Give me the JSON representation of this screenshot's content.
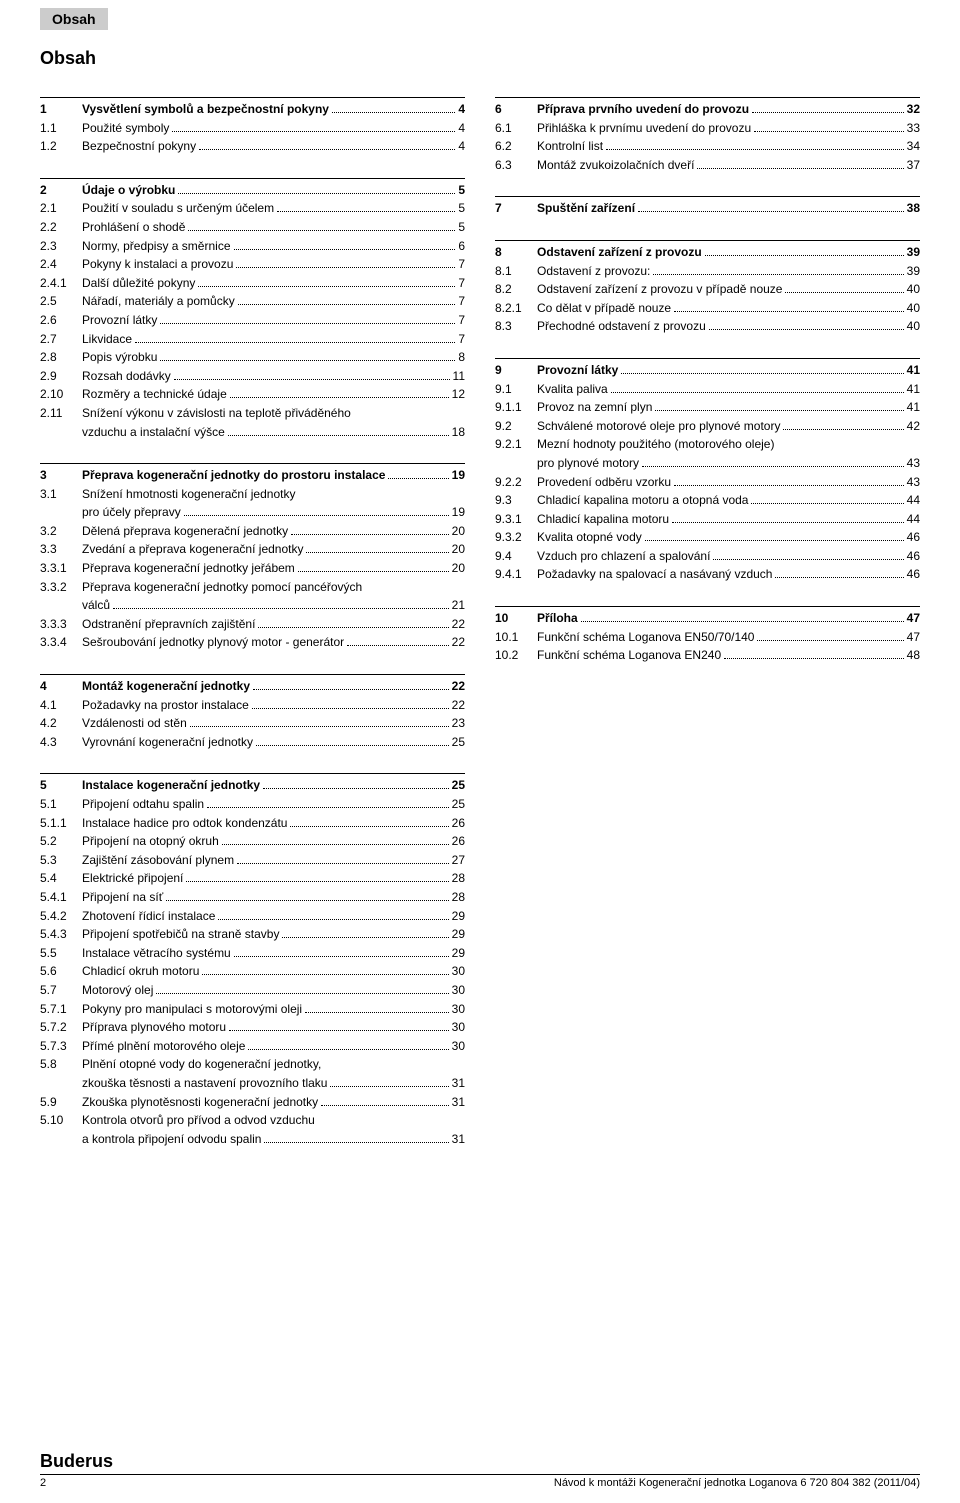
{
  "header_tab": "Obsah",
  "main_title": "Obsah",
  "footer": {
    "brand": "Buderus",
    "page": "2",
    "doc_ref": "Návod k montáži Kogenerační jednotka Loganova  6 720 804 382 (2011/04)"
  },
  "left_column": [
    {
      "type": "section",
      "num": "1",
      "title": "Vysvětlení symbolů a bezpečnostní pokyny",
      "page": "4",
      "items": [
        {
          "num": "1.1",
          "title": "Použité symboly",
          "page": "4"
        },
        {
          "num": "1.2",
          "title": "Bezpečnostní pokyny",
          "page": "4"
        }
      ]
    },
    {
      "type": "section",
      "num": "2",
      "title": "Údaje o výrobku",
      "page": "5",
      "items": [
        {
          "num": "2.1",
          "title": "Použití v souladu s určeným účelem",
          "page": "5"
        },
        {
          "num": "2.2",
          "title": "Prohlášení o shodě",
          "page": "5"
        },
        {
          "num": "2.3",
          "title": "Normy, předpisy a směrnice",
          "page": "6"
        },
        {
          "num": "2.4",
          "title": "Pokyny k instalaci a provozu",
          "page": "7"
        },
        {
          "num": "2.4.1",
          "title": "Další důležité pokyny",
          "page": "7"
        },
        {
          "num": "2.5",
          "title": "Nářadí, materiály a pomůcky",
          "page": "7"
        },
        {
          "num": "2.6",
          "title": "Provozní látky",
          "page": "7"
        },
        {
          "num": "2.7",
          "title": "Likvidace",
          "page": "7"
        },
        {
          "num": "2.8",
          "title": "Popis výrobku",
          "page": "8"
        },
        {
          "num": "2.9",
          "title": "Rozsah dodávky",
          "page": "11"
        },
        {
          "num": "2.10",
          "title": "Rozměry a technické údaje",
          "page": "12"
        },
        {
          "num": "2.11",
          "title_lines": [
            "Snížení výkonu v závislosti na teplotě přiváděného",
            "vzduchu a instalační výšce"
          ],
          "page": "18"
        }
      ]
    },
    {
      "type": "section",
      "num": "3",
      "title": "Přeprava kogenerační jednotky do prostoru instalace",
      "page": "19",
      "items": [
        {
          "num": "3.1",
          "title_lines": [
            "Snížení hmotnosti kogenerační jednotky",
            "pro účely přepravy"
          ],
          "page": "19"
        },
        {
          "num": "3.2",
          "title": "Dělená přeprava kogenerační jednotky",
          "page": "20"
        },
        {
          "num": "3.3",
          "title": "Zvedání a přeprava kogenerační jednotky",
          "page": "20"
        },
        {
          "num": "3.3.1",
          "title": "Přeprava kogenerační jednotky jeřábem",
          "page": "20"
        },
        {
          "num": "3.3.2",
          "title_lines": [
            "Přeprava kogenerační jednotky pomocí pancéřových",
            "válců"
          ],
          "page": "21"
        },
        {
          "num": "3.3.3",
          "title": "Odstranění přepravních zajištění",
          "page": "22"
        },
        {
          "num": "3.3.4",
          "title": "Sešroubování jednotky plynový motor - generátor",
          "page": "22"
        }
      ]
    },
    {
      "type": "section",
      "num": "4",
      "title": "Montáž kogenerační jednotky",
      "page": "22",
      "items": [
        {
          "num": "4.1",
          "title": "Požadavky na prostor instalace",
          "page": "22"
        },
        {
          "num": "4.2",
          "title": "Vzdálenosti od stěn",
          "page": "23"
        },
        {
          "num": "4.3",
          "title": "Vyrovnání kogenerační jednotky",
          "page": "25"
        }
      ]
    },
    {
      "type": "section",
      "num": "5",
      "title": "Instalace kogenerační jednotky",
      "page": "25",
      "items": [
        {
          "num": "5.1",
          "title": "Připojení odtahu spalin",
          "page": "25"
        },
        {
          "num": "5.1.1",
          "title": "Instalace hadice pro odtok kondenzátu",
          "page": "26"
        },
        {
          "num": "5.2",
          "title": "Připojení na otopný okruh",
          "page": "26"
        },
        {
          "num": "5.3",
          "title": "Zajištění zásobování plynem",
          "page": "27"
        },
        {
          "num": "5.4",
          "title": "Elektrické připojení",
          "page": "28"
        },
        {
          "num": "5.4.1",
          "title": "Připojení na síť",
          "page": "28"
        },
        {
          "num": "5.4.2",
          "title": "Zhotovení řídicí instalace",
          "page": "29"
        },
        {
          "num": "5.4.3",
          "title": "Připojení spotřebičů na straně stavby",
          "page": "29"
        },
        {
          "num": "5.5",
          "title": "Instalace větracího systému",
          "page": "29"
        },
        {
          "num": "5.6",
          "title": "Chladicí okruh motoru",
          "page": "30"
        },
        {
          "num": "5.7",
          "title": "Motorový olej",
          "page": "30"
        },
        {
          "num": "5.7.1",
          "title": "Pokyny pro manipulaci s motorovými oleji",
          "page": "30"
        },
        {
          "num": "5.7.2",
          "title": "Příprava plynového motoru",
          "page": "30"
        },
        {
          "num": "5.7.3",
          "title": "Přímé plnění motorového oleje",
          "page": "30"
        },
        {
          "num": "5.8",
          "title_lines": [
            "Plnění otopné vody do kogenerační jednotky,",
            "zkouška těsnosti a nastavení provozního tlaku"
          ],
          "page": "31"
        },
        {
          "num": "5.9",
          "title": "Zkouška plynotěsnosti kogenerační jednotky",
          "page": "31"
        },
        {
          "num": "5.10",
          "title_lines": [
            "Kontrola otvorů pro přívod a odvod vzduchu",
            "a kontrola připojení odvodu spalin"
          ],
          "page": "31"
        }
      ]
    }
  ],
  "right_column": [
    {
      "type": "section",
      "num": "6",
      "title": "Příprava prvního uvedení do provozu",
      "page": "32",
      "items": [
        {
          "num": "6.1",
          "title": "Přihláška k prvnímu uvedení do provozu",
          "page": "33"
        },
        {
          "num": "6.2",
          "title": "Kontrolní list",
          "page": "34"
        },
        {
          "num": "6.3",
          "title": "Montáž zvukoizolačních dveří",
          "page": "37"
        }
      ]
    },
    {
      "type": "section",
      "num": "7",
      "title": "Spuštění zařízení",
      "page": "38",
      "items": []
    },
    {
      "type": "section",
      "num": "8",
      "title": "Odstavení zařízení z provozu",
      "page": "39",
      "items": [
        {
          "num": "8.1",
          "title": "Odstavení z provozu:",
          "page": "39"
        },
        {
          "num": "8.2",
          "title": "Odstavení zařízení z provozu v případě nouze",
          "page": "40"
        },
        {
          "num": "8.2.1",
          "title": "Co dělat v případě nouze",
          "page": "40"
        },
        {
          "num": "8.3",
          "title": "Přechodné odstavení z provozu",
          "page": "40"
        }
      ]
    },
    {
      "type": "section",
      "num": "9",
      "title": "Provozní látky",
      "page": "41",
      "items": [
        {
          "num": "9.1",
          "title": "Kvalita paliva",
          "page": "41"
        },
        {
          "num": "9.1.1",
          "title": "Provoz na zemní plyn",
          "page": "41"
        },
        {
          "num": "9.2",
          "title": "Schválené motorové oleje pro plynové motory",
          "page": "42"
        },
        {
          "num": "9.2.1",
          "title_lines": [
            "Mezní hodnoty použitého (motorového oleje)",
            "pro plynové motory"
          ],
          "page": "43"
        },
        {
          "num": "9.2.2",
          "title": "Provedení odběru vzorku",
          "page": "43"
        },
        {
          "num": "9.3",
          "title": "Chladicí kapalina motoru a otopná voda",
          "page": "44"
        },
        {
          "num": "9.3.1",
          "title": "Chladicí kapalina motoru",
          "page": "44"
        },
        {
          "num": "9.3.2",
          "title": "Kvalita otopné vody",
          "page": "46"
        },
        {
          "num": "9.4",
          "title": "Vzduch pro chlazení a spalování",
          "page": "46"
        },
        {
          "num": "9.4.1",
          "title": "Požadavky na spalovací a nasávaný vzduch",
          "page": "46"
        }
      ]
    },
    {
      "type": "section",
      "num": "10",
      "title": "Příloha",
      "page": "47",
      "items": [
        {
          "num": "10.1",
          "title": "Funkční schéma Loganova EN50/70/140",
          "page": "47"
        },
        {
          "num": "10.2",
          "title": "Funkční schéma Loganova EN240",
          "page": "48"
        }
      ]
    }
  ]
}
